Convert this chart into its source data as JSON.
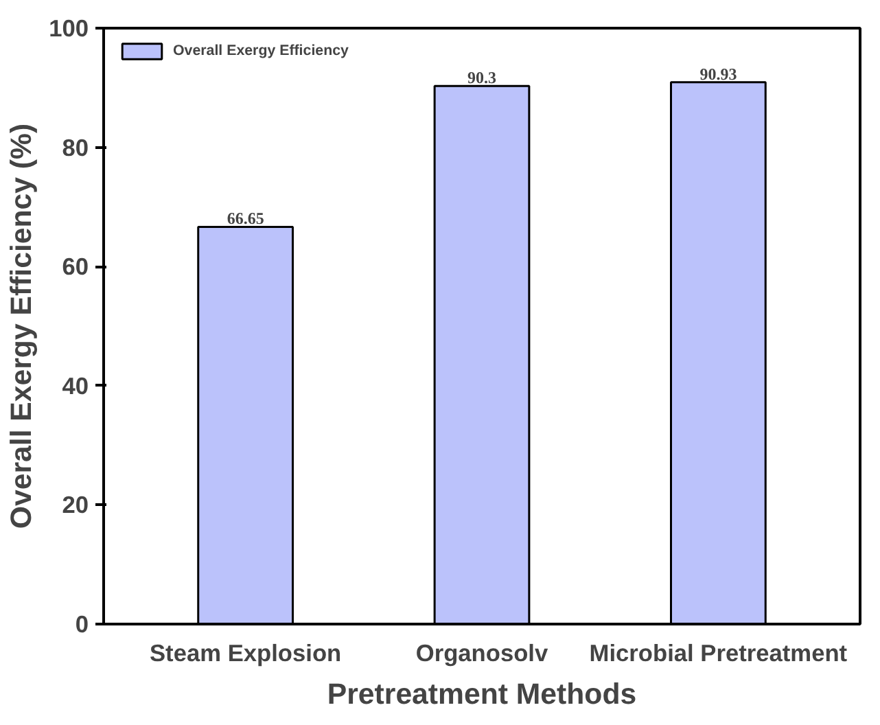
{
  "chart_data": {
    "type": "bar",
    "xlabel": "Pretreatment Methods",
    "ylabel": "Overall Exergy Efficiency (%)",
    "categories": [
      "Steam Explosion",
      "Organosolv",
      "Microbial Pretreatment"
    ],
    "series": [
      {
        "name": "Overall Exergy Efficiency",
        "color": "#bbc2fb",
        "values": [
          66.65,
          90.3,
          90.93
        ]
      }
    ],
    "ylim": [
      0,
      100
    ],
    "yticks": [
      0,
      20,
      40,
      60,
      80,
      100
    ],
    "data_labels": true,
    "legend": "top left",
    "grid": false
  }
}
